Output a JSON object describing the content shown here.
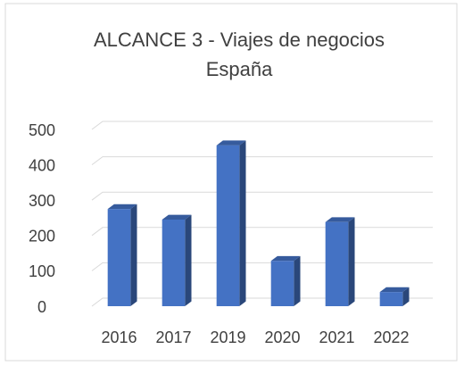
{
  "chart_data": {
    "type": "bar3d",
    "title": [
      "ALCANCE 3 - Viajes de negocios",
      "España"
    ],
    "categories": [
      "2016",
      "2017",
      "2019",
      "2020",
      "2021",
      "2022"
    ],
    "values": [
      275,
      245,
      455,
      128,
      238,
      40
    ],
    "color": "#4472c4",
    "ylim": [
      0,
      500
    ],
    "yticks": [
      0,
      100,
      200,
      300,
      400,
      500
    ],
    "grid": true
  }
}
